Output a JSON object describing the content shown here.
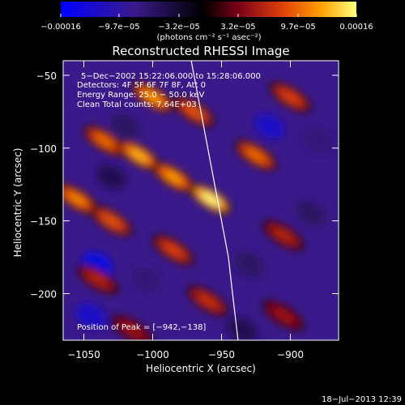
{
  "chart_data": {
    "type": "heatmap",
    "title": "Reconstructed RHESSI Image",
    "xlabel": "Heliocentric X (arcsec)",
    "ylabel": "Heliocentric Y (arcsec)",
    "xlim": [
      -1065,
      -865
    ],
    "ylim": [
      -232,
      -40
    ],
    "x_ticks": [
      -1050,
      -1000,
      -950,
      -900
    ],
    "x_tick_labels": [
      "−1050",
      "−1000",
      "−950",
      "−900"
    ],
    "y_ticks": [
      -50,
      -100,
      -150,
      -200
    ],
    "y_tick_labels": [
      "−50",
      "−100",
      "−150",
      "−200"
    ],
    "colorbar": {
      "range": [
        -0.00016,
        0.00016
      ],
      "ticks": [
        -0.00016,
        -9.7e-05,
        -3.2e-05,
        3.2e-05,
        9.7e-05,
        0.00016
      ],
      "tick_labels": [
        "−0.00016",
        "−9.7e−05",
        "−3.2e−05",
        "3.2e−05",
        "9.7e−05",
        "0.00016"
      ],
      "units": "(photons cm⁻² s⁻¹ asec⁻²)",
      "colormap": [
        "#0000ff",
        "#3a1a8a",
        "#000000",
        "#7a0018",
        "#e0400a",
        "#ffa000",
        "#ffff80"
      ]
    },
    "annotations": [
      "5−Dec−2002 15:22:06.000 to 15:28:06.000",
      "Detectors: 4F 5F 6F 7F 8F, Att 0",
      "Energy Range: 25.0 − 50.0 keV",
      "Clean    Total counts: 7.64E+03"
    ],
    "peak_label": "Position of Peak = [−942,−138]",
    "peak": [
      -942,
      -138
    ],
    "limb_curve": [
      [
        -972,
        -40
      ],
      [
        -960,
        -100
      ],
      [
        -950,
        -150
      ],
      [
        -945,
        -175
      ],
      [
        -942,
        -200
      ],
      [
        -938,
        -232
      ]
    ],
    "ridges": [
      {
        "x": -1035,
        "y": -95,
        "value": 0.0001
      },
      {
        "x": -1010,
        "y": -105,
        "value": 0.00013
      },
      {
        "x": -985,
        "y": -120,
        "value": 0.00012
      },
      {
        "x": -958,
        "y": -135,
        "value": 0.00016
      },
      {
        "x": -1000,
        "y": -65,
        "value": 0.00012
      },
      {
        "x": -970,
        "y": -75,
        "value": 9e-05
      },
      {
        "x": -925,
        "y": -105,
        "value": 0.0001
      },
      {
        "x": -900,
        "y": -65,
        "value": 8e-05
      },
      {
        "x": -1055,
        "y": -135,
        "value": 0.00011
      },
      {
        "x": -1030,
        "y": -150,
        "value": 9e-05
      },
      {
        "x": -985,
        "y": -170,
        "value": 8e-05
      },
      {
        "x": -1040,
        "y": -190,
        "value": 6e-05
      },
      {
        "x": -960,
        "y": -205,
        "value": 7e-05
      },
      {
        "x": -905,
        "y": -160,
        "value": 6e-05
      },
      {
        "x": -905,
        "y": -215,
        "value": 5e-05
      },
      {
        "x": -1015,
        "y": -225,
        "value": 5e-05
      }
    ],
    "troughs": [
      {
        "x": -1045,
        "y": -55,
        "value": -8e-05
      },
      {
        "x": -1020,
        "y": -85,
        "value": -6e-05
      },
      {
        "x": -915,
        "y": -85,
        "value": -0.00012
      },
      {
        "x": -880,
        "y": -95,
        "value": -7e-05
      },
      {
        "x": -1030,
        "y": -120,
        "value": -5e-05
      },
      {
        "x": -1040,
        "y": -180,
        "value": -0.00014
      },
      {
        "x": -1045,
        "y": -215,
        "value": -0.00012
      },
      {
        "x": -1005,
        "y": -190,
        "value": -7e-05
      },
      {
        "x": -930,
        "y": -180,
        "value": -6e-05
      },
      {
        "x": -885,
        "y": -145,
        "value": -6e-05
      },
      {
        "x": -935,
        "y": -225,
        "value": -5e-05
      }
    ]
  },
  "footer": {
    "timestamp": "18−Jul−2013 12:39"
  }
}
